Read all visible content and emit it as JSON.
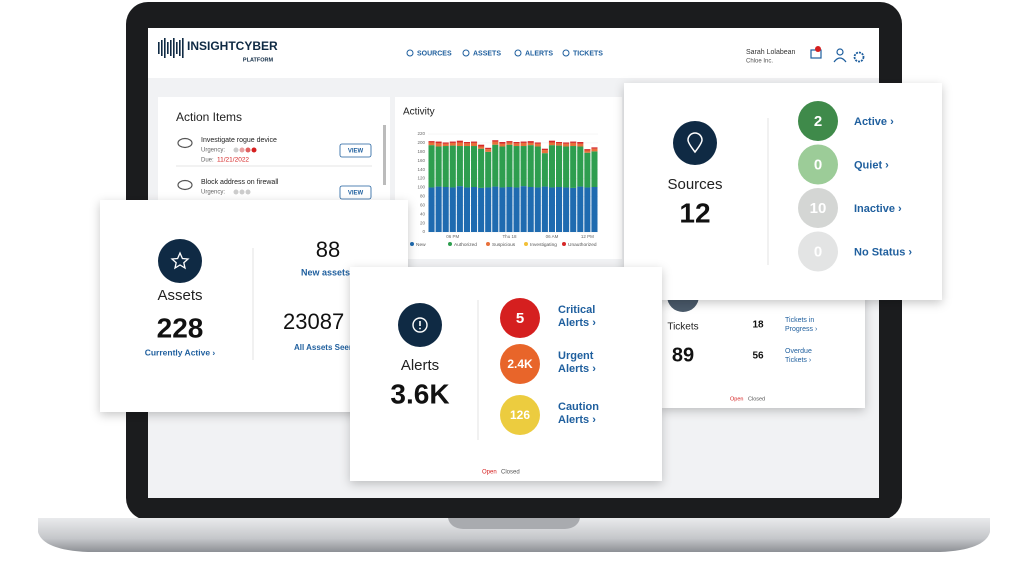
{
  "header": {
    "logo": "INSIGHTCYBER",
    "logo_sub": "PLATFORM",
    "nav": [
      "SOURCES",
      "ASSETS",
      "ALERTS",
      "TICKETS"
    ],
    "user": "Sarah Lolabean",
    "org": "Chloe Inc."
  },
  "action_items": {
    "title": "Action Items",
    "items": [
      {
        "task": "Investigate rogue device",
        "urgency_label": "Urgency:",
        "due_label": "Due:",
        "due": "11/21/2022",
        "button": "VIEW"
      },
      {
        "task": "Block address on firewall",
        "urgency_label": "Urgency:",
        "button": "VIEW"
      }
    ]
  },
  "activity": {
    "title": "Activity",
    "ylim": [
      0,
      220
    ],
    "yticks": [
      0,
      20,
      40,
      60,
      80,
      100,
      120,
      140,
      160,
      180,
      200,
      220
    ],
    "x_labels": [
      "06 PM",
      "Thu 18",
      "06 AM",
      "12 PM"
    ],
    "series": [
      {
        "name": "New",
        "color": "#1f6bb0",
        "values": [
          100,
          102,
          101,
          100,
          103,
          100,
          101,
          99,
          100,
          102,
          100,
          101,
          100,
          103,
          101,
          100,
          102,
          100,
          101,
          100,
          99,
          102,
          100,
          101
        ]
      },
      {
        "name": "Authorized",
        "color": "#2e9e4f",
        "values": [
          95,
          90,
          92,
          94,
          90,
          93,
          92,
          88,
          80,
          94,
          92,
          95,
          93,
          90,
          94,
          92,
          75,
          95,
          93,
          92,
          94,
          90,
          78,
          80
        ]
      },
      {
        "name": "Suspicious",
        "color": "#e8703a",
        "values": [
          6,
          7,
          5,
          6,
          8,
          6,
          7,
          5,
          6,
          7,
          6,
          5,
          6,
          7,
          5,
          6,
          7,
          6,
          5,
          6,
          7,
          6,
          5,
          6
        ]
      },
      {
        "name": "Investigating",
        "color": "#f2c037",
        "values": [
          0,
          0,
          0,
          0,
          0,
          0,
          0,
          0,
          0,
          0,
          0,
          0,
          0,
          0,
          0,
          0,
          0,
          0,
          0,
          0,
          0,
          0,
          0,
          0
        ]
      },
      {
        "name": "Unauthorized",
        "color": "#d62828",
        "values": [
          3,
          4,
          3,
          3,
          4,
          3,
          3,
          4,
          3,
          3,
          4,
          3,
          3,
          3,
          4,
          3,
          3,
          4,
          3,
          3,
          3,
          4,
          3,
          3
        ]
      }
    ]
  },
  "sources": {
    "title": "Sources",
    "total": 12,
    "statuses": [
      {
        "count": 2,
        "label": "Active ›",
        "color": "#3f8a4a"
      },
      {
        "count": 0,
        "label": "Quiet ›",
        "color": "#9ccc98"
      },
      {
        "count": 10,
        "label": "Inactive ›",
        "color": "#d4d6d4"
      },
      {
        "count": 0,
        "label": "No Status ›",
        "color": "#e3e4e4"
      }
    ]
  },
  "assets": {
    "title": "Assets",
    "total": 228,
    "link": "Currently Active ›",
    "new_count": 88,
    "new_label": "New assets",
    "seen_count": 23087,
    "seen_label": "All Assets Seen"
  },
  "alerts": {
    "title": "Alerts",
    "total": "3.6K",
    "levels": [
      {
        "count": "5",
        "label": "Critical",
        "sub": "Alerts ›",
        "color": "#d51f1f"
      },
      {
        "count": "2.4K",
        "label": "Urgent",
        "sub": "Alerts ›",
        "color": "#e8652a"
      },
      {
        "count": "126",
        "label": "Caution",
        "sub": "Alerts ›",
        "color": "#eccc3f"
      }
    ],
    "open": "Open",
    "closed": "Closed"
  },
  "tickets": {
    "title": "Tickets",
    "total": 89,
    "in_progress": 18,
    "in_progress_label": [
      "Tickets in",
      "Progress ›"
    ],
    "overdue": 56,
    "overdue_label": [
      "Overdue",
      "Tickets ›"
    ],
    "open": "Open",
    "closed": "Closed"
  }
}
